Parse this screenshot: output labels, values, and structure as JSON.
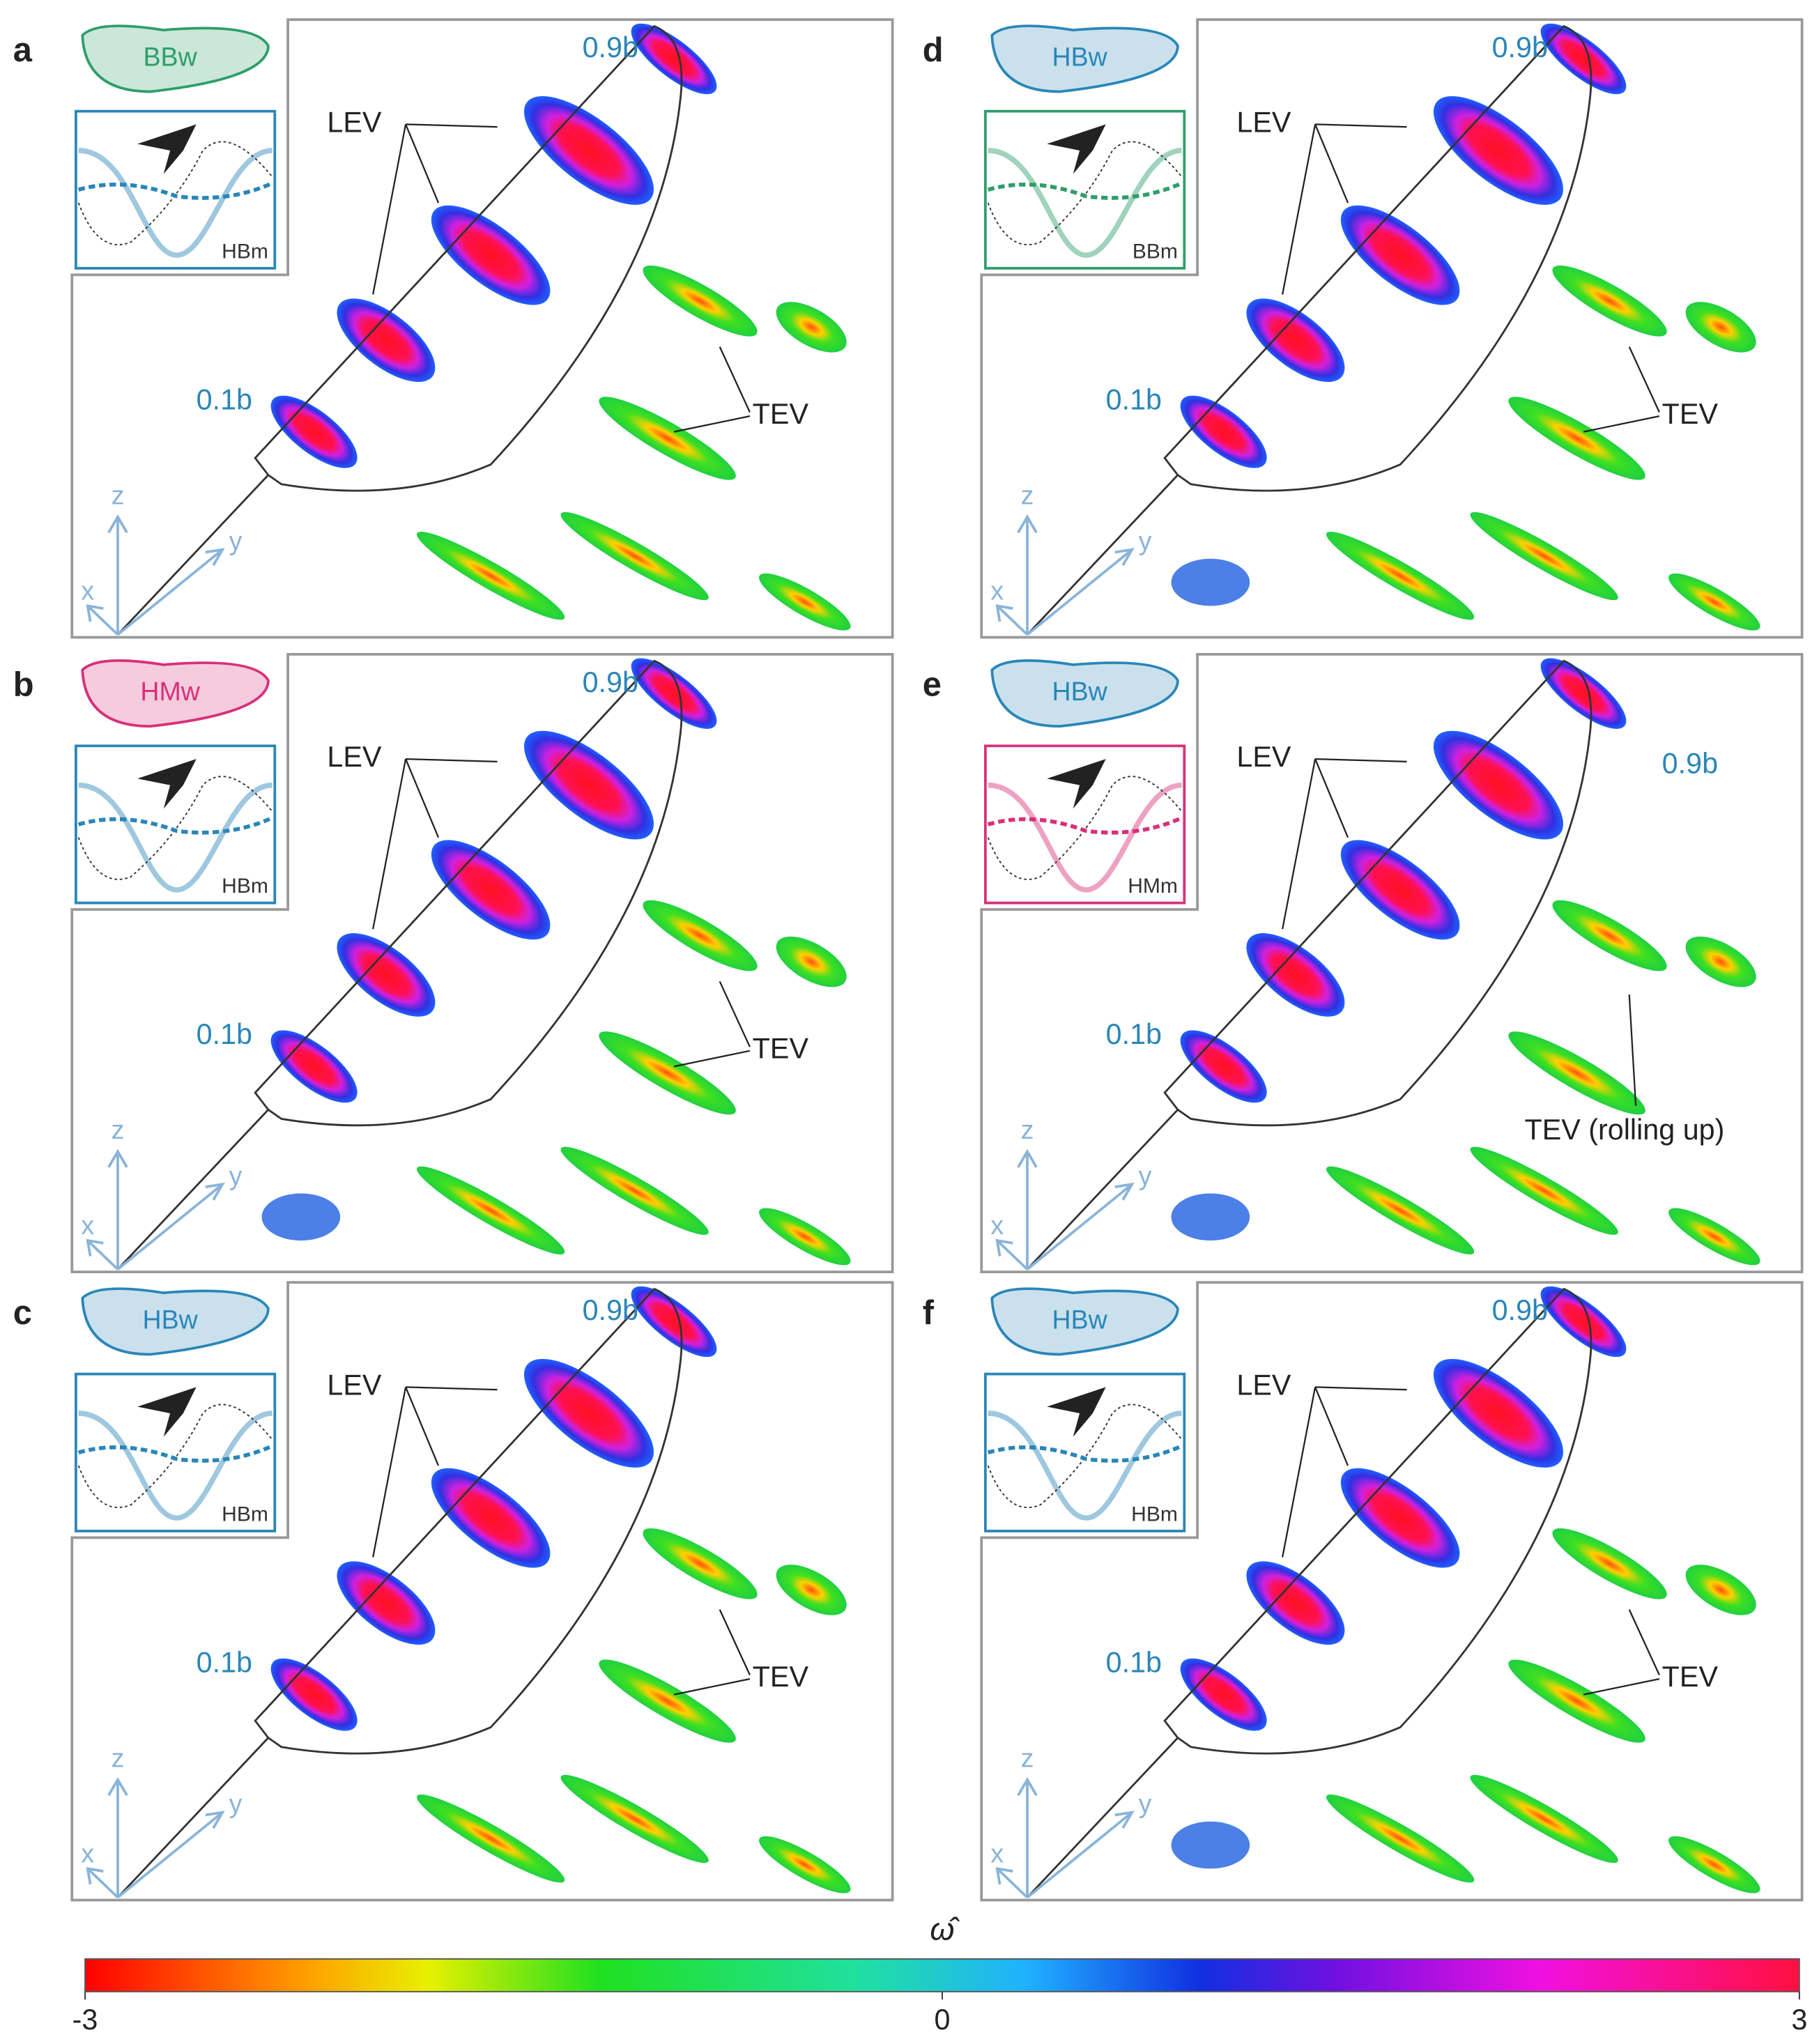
{
  "figure": {
    "panels": [
      {
        "label": "a",
        "wing": "BBw",
        "wing_color": "#2e9e6a",
        "motion": "HBm",
        "motion_color": "#2a86b8",
        "annotations": {
          "tip": "0.9b",
          "root": "0.1b",
          "lev": "LEV",
          "tev": "TEV"
        }
      },
      {
        "label": "b",
        "wing": "HMw",
        "wing_color": "#d9307a",
        "motion": "HBm",
        "motion_color": "#2a86b8",
        "annotations": {
          "tip": "0.9b",
          "root": "0.1b",
          "lev": "LEV",
          "tev": "TEV"
        }
      },
      {
        "label": "c",
        "wing": "HBw",
        "wing_color": "#2a86b8",
        "motion": "HBm",
        "motion_color": "#2a86b8",
        "annotations": {
          "tip": "0.9b",
          "root": "0.1b",
          "lev": "LEV",
          "tev": "TEV"
        }
      },
      {
        "label": "d",
        "wing": "HBw",
        "wing_color": "#2a86b8",
        "motion": "BBm",
        "motion_color": "#2e9e6a",
        "annotations": {
          "tip": "0.9b",
          "root": "0.1b",
          "lev": "LEV",
          "tev": "TEV"
        }
      },
      {
        "label": "e",
        "wing": "HBw",
        "wing_color": "#2a86b8",
        "motion": "HMm",
        "motion_color": "#d9307a",
        "annotations": {
          "tip": "0.9b",
          "root": "0.1b",
          "lev": "LEV",
          "tev": "TEV (rolling up)"
        }
      },
      {
        "label": "f",
        "wing": "HBw",
        "wing_color": "#2a86b8",
        "motion": "HBm",
        "motion_color": "#2a86b8",
        "annotations": {
          "tip": "0.9b",
          "root": "0.1b",
          "lev": "LEV",
          "tev": "TEV"
        }
      }
    ],
    "axis_labels": [
      "z",
      "y",
      "x"
    ],
    "colorbar": {
      "title": "ω̂",
      "lim": [
        -3,
        3
      ],
      "ticks": [
        -3,
        0,
        3
      ]
    }
  }
}
